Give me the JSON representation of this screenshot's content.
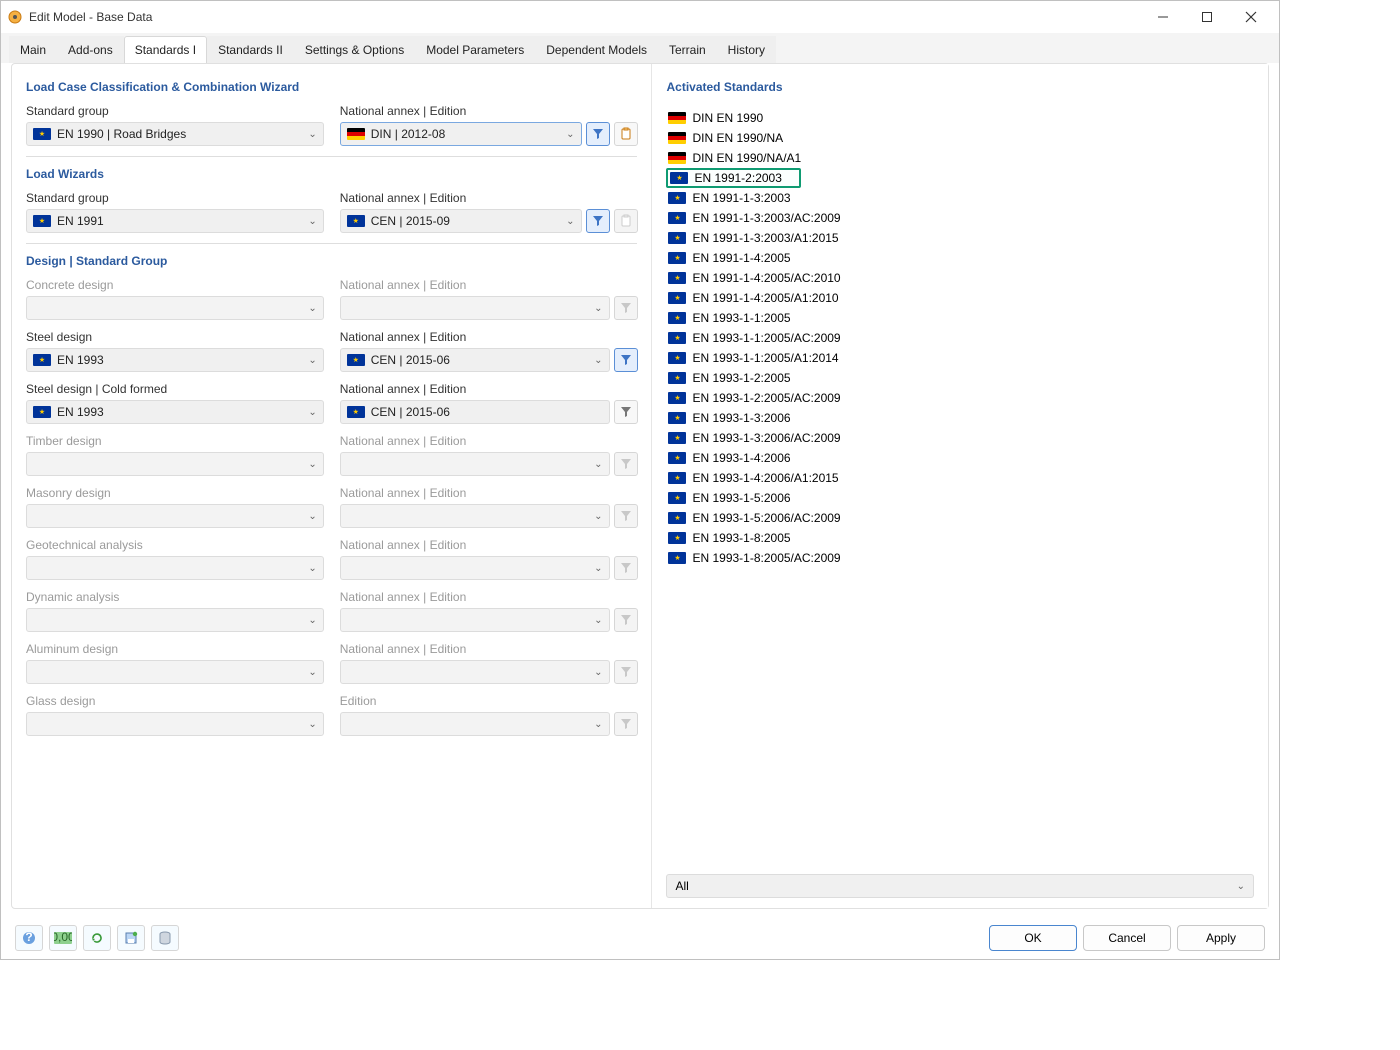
{
  "window": {
    "title": "Edit Model - Base Data"
  },
  "tabs": [
    "Main",
    "Add-ons",
    "Standards I",
    "Standards II",
    "Settings & Options",
    "Model Parameters",
    "Dependent Models",
    "Terrain",
    "History"
  ],
  "active_tab_index": 2,
  "sections": {
    "wizard": {
      "title": "Load Case Classification & Combination Wizard",
      "std_group_label": "Standard group",
      "std_group_value": "EN 1990 | Road Bridges",
      "std_group_flag": "eu",
      "annex_label": "National annex | Edition",
      "annex_value": "DIN | 2012-08",
      "annex_flag": "de",
      "filter_active": true
    },
    "load_wizards": {
      "title": "Load Wizards",
      "std_group_label": "Standard group",
      "std_group_value": "EN 1991",
      "std_group_flag": "eu",
      "annex_label": "National annex | Edition",
      "annex_value": "CEN | 2015-09",
      "annex_flag": "eu",
      "filter_active": true
    },
    "design_group": {
      "title": "Design | Standard Group",
      "rows": [
        {
          "label": "Concrete design",
          "value": "",
          "flag": "",
          "annex_label": "National annex | Edition",
          "annex_value": "",
          "annex_flag": "",
          "enabled": false,
          "filter_active": false
        },
        {
          "label": "Steel design",
          "value": "EN 1993",
          "flag": "eu",
          "annex_label": "National annex | Edition",
          "annex_value": "CEN | 2015-06",
          "annex_flag": "eu",
          "enabled": true,
          "filter_active": true
        },
        {
          "label": "Steel design | Cold formed",
          "value": "EN 1993",
          "flag": "eu",
          "annex_label": "National annex | Edition",
          "annex_value": "CEN | 2015-06",
          "annex_flag": "eu",
          "enabled": true,
          "filter_active": false,
          "no_chev_right": true
        },
        {
          "label": "Timber design",
          "value": "",
          "flag": "",
          "annex_label": "National annex | Edition",
          "annex_value": "",
          "annex_flag": "",
          "enabled": false,
          "filter_active": false
        },
        {
          "label": "Masonry design",
          "value": "",
          "flag": "",
          "annex_label": "National annex | Edition",
          "annex_value": "",
          "annex_flag": "",
          "enabled": false,
          "filter_active": false
        },
        {
          "label": "Geotechnical analysis",
          "value": "",
          "flag": "",
          "annex_label": "National annex | Edition",
          "annex_value": "",
          "annex_flag": "",
          "enabled": false,
          "filter_active": false
        },
        {
          "label": "Dynamic analysis",
          "value": "",
          "flag": "",
          "annex_label": "National annex | Edition",
          "annex_value": "",
          "annex_flag": "",
          "enabled": false,
          "filter_active": false
        },
        {
          "label": "Aluminum design",
          "value": "",
          "flag": "",
          "annex_label": "National annex | Edition",
          "annex_value": "",
          "annex_flag": "",
          "enabled": false,
          "filter_active": false
        },
        {
          "label": "Glass design",
          "value": "",
          "flag": "",
          "annex_label": "Edition",
          "annex_value": "",
          "annex_flag": "",
          "enabled": false,
          "filter_active": false
        }
      ]
    }
  },
  "right": {
    "title": "Activated Standards",
    "items": [
      {
        "flag": "de",
        "text": "DIN EN 1990"
      },
      {
        "flag": "de",
        "text": "DIN EN 1990/NA"
      },
      {
        "flag": "de",
        "text": "DIN EN 1990/NA/A1"
      },
      {
        "flag": "eu",
        "text": "EN 1991-2:2003",
        "highlight": true
      },
      {
        "flag": "eu",
        "text": "EN 1991-1-3:2003"
      },
      {
        "flag": "eu",
        "text": "EN 1991-1-3:2003/AC:2009"
      },
      {
        "flag": "eu",
        "text": "EN 1991-1-3:2003/A1:2015"
      },
      {
        "flag": "eu",
        "text": "EN 1991-1-4:2005"
      },
      {
        "flag": "eu",
        "text": "EN 1991-1-4:2005/AC:2010"
      },
      {
        "flag": "eu",
        "text": "EN 1991-1-4:2005/A1:2010"
      },
      {
        "flag": "eu",
        "text": "EN 1993-1-1:2005"
      },
      {
        "flag": "eu",
        "text": "EN 1993-1-1:2005/AC:2009"
      },
      {
        "flag": "eu",
        "text": "EN 1993-1-1:2005/A1:2014"
      },
      {
        "flag": "eu",
        "text": "EN 1993-1-2:2005"
      },
      {
        "flag": "eu",
        "text": "EN 1993-1-2:2005/AC:2009"
      },
      {
        "flag": "eu",
        "text": "EN 1993-1-3:2006"
      },
      {
        "flag": "eu",
        "text": "EN 1993-1-3:2006/AC:2009"
      },
      {
        "flag": "eu",
        "text": "EN 1993-1-4:2006"
      },
      {
        "flag": "eu",
        "text": "EN 1993-1-4:2006/A1:2015"
      },
      {
        "flag": "eu",
        "text": "EN 1993-1-5:2006"
      },
      {
        "flag": "eu",
        "text": "EN 1993-1-5:2006/AC:2009"
      },
      {
        "flag": "eu",
        "text": "EN 1993-1-8:2005"
      },
      {
        "flag": "eu",
        "text": "EN 1993-1-8:2005/AC:2009"
      }
    ],
    "filter_value": "All"
  },
  "footer": {
    "buttons": {
      "ok": "OK",
      "cancel": "Cancel",
      "apply": "Apply"
    }
  },
  "colors": {
    "accent": "#2b5a9e",
    "highlight_border": "#0f9b72"
  }
}
